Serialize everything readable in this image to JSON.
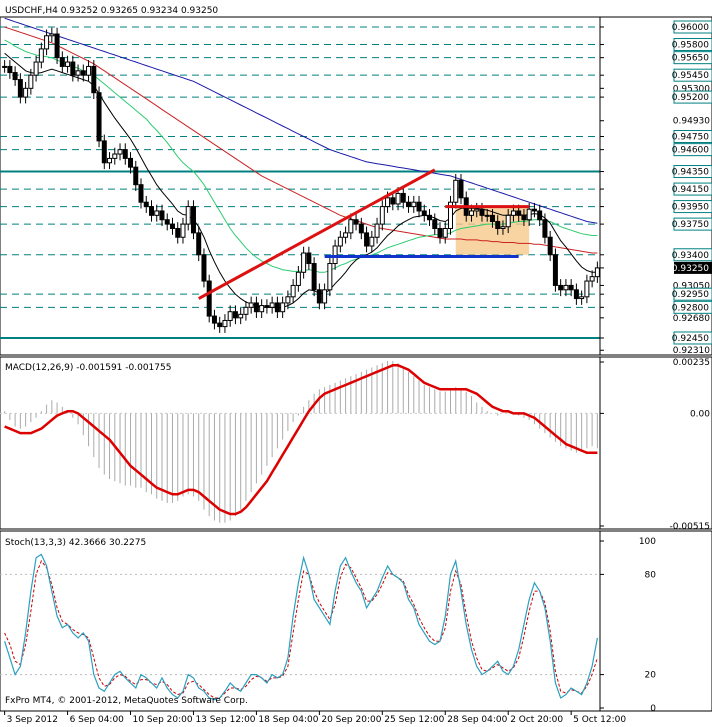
{
  "header": {
    "symbol": "USDCHF,H4",
    "ohlc": "0.93252 0.93265 0.93234 0.93250",
    "macd_label": "MACD(12,26,9) -0.001591 -0.001755",
    "stoch_label": "Stoch(13,3,3) 42.3666 30.2275",
    "copyright": "FxPro MT4, © 2001-2012, MetaQuotes Software Corp."
  },
  "colors": {
    "grid": "#008080",
    "candle": "#000000",
    "ma_fast": "#000000",
    "ma_green": "#2ecc71",
    "ma_red": "#cc2222",
    "ma_blue": "#1a1aaa",
    "trend": "#dd1111",
    "support": "#1133cc",
    "box_fill": "#f5c98a",
    "macd_hist": "#aaaaaa",
    "macd_signal": "#dd0000",
    "stoch_k": "#2aa0c0",
    "stoch_d": "#cc0000",
    "price_tag_bg": "#000000"
  },
  "chart_data": [
    {
      "type": "candlestick",
      "title": "USDCHF,H4",
      "ylim": [
        0.9229,
        0.9608
      ],
      "y_ticks": [
        "0.96000",
        "0.95800",
        "0.95650",
        "0.95450",
        "0.95300",
        "0.95200",
        "0.94930",
        "0.94750",
        "0.94600",
        "0.94350",
        "0.94150",
        "0.93950",
        "0.93750",
        "0.93400",
        "0.93250",
        "0.93050",
        "0.92950",
        "0.92800",
        "0.92680",
        "0.92450",
        "0.92310"
      ],
      "horizontal_levels": [
        0.96,
        0.958,
        0.9565,
        0.9545,
        0.952,
        0.9475,
        0.946,
        0.9435,
        0.9415,
        0.9395,
        0.9375,
        0.934,
        0.9295,
        0.928,
        0.9245
      ],
      "current_price": "0.93250",
      "x_ticks": [
        "3 Sep 2012",
        "6 Sep 04:00",
        "10 Sep 20:00",
        "13 Sep 12:00",
        "18 Sep 04:00",
        "20 Sep 20:00",
        "25 Sep 12:00",
        "28 Sep 04:00",
        "2 Oct 20:00",
        "5 Oct 12:00"
      ],
      "close": [
        0.9555,
        0.9548,
        0.954,
        0.952,
        0.953,
        0.9545,
        0.956,
        0.9575,
        0.959,
        0.9592,
        0.9565,
        0.9555,
        0.956,
        0.9545,
        0.955,
        0.9545,
        0.9555,
        0.9525,
        0.947,
        0.9445,
        0.945,
        0.9455,
        0.946,
        0.945,
        0.944,
        0.942,
        0.94,
        0.9395,
        0.9385,
        0.939,
        0.938,
        0.9375,
        0.937,
        0.936,
        0.9375,
        0.9395,
        0.9365,
        0.934,
        0.931,
        0.927,
        0.9262,
        0.9258,
        0.9265,
        0.9275,
        0.9268,
        0.9272,
        0.928,
        0.9285,
        0.9275,
        0.9282,
        0.928,
        0.9285,
        0.9275,
        0.9285,
        0.9292,
        0.9305,
        0.932,
        0.9342,
        0.933,
        0.93,
        0.9285,
        0.93,
        0.933,
        0.935,
        0.936,
        0.9365,
        0.938,
        0.9375,
        0.9365,
        0.935,
        0.936,
        0.9375,
        0.9395,
        0.9405,
        0.9398,
        0.941,
        0.94,
        0.9395,
        0.94,
        0.939,
        0.9385,
        0.938,
        0.937,
        0.936,
        0.937,
        0.94,
        0.9425,
        0.9405,
        0.9385,
        0.939,
        0.9392,
        0.9385,
        0.9385,
        0.9378,
        0.937,
        0.9372,
        0.9385,
        0.939,
        0.9385,
        0.938,
        0.9392,
        0.939,
        0.938,
        0.936,
        0.934,
        0.9305,
        0.93,
        0.9305,
        0.93,
        0.929,
        0.9292,
        0.931,
        0.9315,
        0.9325
      ],
      "stats": {
        "wick": 0.0012
      },
      "ma_green": [
        0.9585,
        0.9582,
        0.9578,
        0.9575,
        0.9572,
        0.957,
        0.9568,
        0.9567,
        0.9566,
        0.9565,
        0.9562,
        0.956,
        0.9558,
        0.9555,
        0.9553,
        0.955,
        0.9548,
        0.9545,
        0.954,
        0.9535,
        0.953,
        0.9525,
        0.952,
        0.9515,
        0.951,
        0.9505,
        0.95,
        0.9495,
        0.9488,
        0.9482,
        0.9475,
        0.9468,
        0.946,
        0.9452,
        0.9445,
        0.944,
        0.9435,
        0.9428,
        0.942,
        0.941,
        0.94,
        0.939,
        0.938,
        0.937,
        0.9362,
        0.9355,
        0.9348,
        0.9342,
        0.9337,
        0.9333,
        0.933,
        0.9327,
        0.9325,
        0.9323,
        0.9322,
        0.9321,
        0.9321,
        0.9322,
        0.9323,
        0.9322,
        0.932,
        0.932,
        0.9322,
        0.9325,
        0.9328,
        0.933,
        0.9333,
        0.9335,
        0.9337,
        0.9338,
        0.934,
        0.9342,
        0.9345,
        0.9348,
        0.935,
        0.9352,
        0.9354,
        0.9356,
        0.9358,
        0.936,
        0.9361,
        0.9362,
        0.9363,
        0.9363,
        0.9363,
        0.9365,
        0.9368,
        0.937,
        0.9371,
        0.9372,
        0.9373,
        0.9374,
        0.9375,
        0.9375,
        0.9375,
        0.9375,
        0.9376,
        0.9377,
        0.9378,
        0.9378,
        0.9379,
        0.938,
        0.938,
        0.9379,
        0.9378,
        0.9375,
        0.9372,
        0.937,
        0.9368,
        0.9366,
        0.9364,
        0.9363,
        0.9362,
        0.9362
      ],
      "ma_red": [
        0.96,
        0.9598,
        0.9596,
        0.9594,
        0.9592,
        0.959,
        0.9588,
        0.9586,
        0.9584,
        0.9582,
        0.9579,
        0.9576,
        0.9573,
        0.957,
        0.9567,
        0.9564,
        0.9561,
        0.9558,
        0.9554,
        0.955,
        0.9546,
        0.9542,
        0.9538,
        0.9534,
        0.953,
        0.9526,
        0.9522,
        0.9518,
        0.9514,
        0.951,
        0.9506,
        0.9502,
        0.9498,
        0.9494,
        0.949,
        0.9486,
        0.9482,
        0.9478,
        0.9474,
        0.947,
        0.9466,
        0.9462,
        0.9458,
        0.9454,
        0.945,
        0.9446,
        0.9442,
        0.9438,
        0.9434,
        0.943,
        0.9427,
        0.9424,
        0.9421,
        0.9418,
        0.9415,
        0.9412,
        0.9409,
        0.9406,
        0.9403,
        0.94,
        0.9397,
        0.9394,
        0.9391,
        0.9388,
        0.9385,
        0.9383,
        0.9381,
        0.9379,
        0.9377,
        0.9375,
        0.9373,
        0.9371,
        0.937,
        0.9369,
        0.9368,
        0.9367,
        0.9366,
        0.9365,
        0.9364,
        0.9363,
        0.9362,
        0.9361,
        0.936,
        0.9359,
        0.9358,
        0.9358,
        0.9358,
        0.9358,
        0.9357,
        0.9357,
        0.9357,
        0.9356,
        0.9356,
        0.9355,
        0.9355,
        0.9354,
        0.9354,
        0.9354,
        0.9353,
        0.9353,
        0.9353,
        0.9352,
        0.9352,
        0.9351,
        0.935,
        0.9349,
        0.9348,
        0.9347,
        0.9346,
        0.9345,
        0.9344,
        0.9343,
        0.9342,
        0.9342
      ],
      "ma_blue": [
        0.961,
        0.9608,
        0.9606,
        0.9604,
        0.9602,
        0.96,
        0.9598,
        0.9596,
        0.9594,
        0.9592,
        0.959,
        0.9588,
        0.9586,
        0.9584,
        0.9582,
        0.958,
        0.9578,
        0.9576,
        0.9574,
        0.9572,
        0.957,
        0.9568,
        0.9566,
        0.9564,
        0.9562,
        0.956,
        0.9558,
        0.9556,
        0.9554,
        0.9552,
        0.955,
        0.9548,
        0.9546,
        0.9544,
        0.9542,
        0.954,
        0.9538,
        0.9535,
        0.9532,
        0.9529,
        0.9526,
        0.9523,
        0.952,
        0.9517,
        0.9514,
        0.9511,
        0.9508,
        0.9505,
        0.9502,
        0.9499,
        0.9496,
        0.9493,
        0.949,
        0.9487,
        0.9484,
        0.9481,
        0.9478,
        0.9475,
        0.9472,
        0.9469,
        0.9466,
        0.9463,
        0.946,
        0.9458,
        0.9456,
        0.9454,
        0.9452,
        0.945,
        0.9448,
        0.9446,
        0.9445,
        0.9444,
        0.9443,
        0.9442,
        0.9441,
        0.944,
        0.9439,
        0.9438,
        0.9437,
        0.9436,
        0.9435,
        0.9434,
        0.9433,
        0.9432,
        0.9431,
        0.943,
        0.9428,
        0.9426,
        0.9424,
        0.9422,
        0.942,
        0.9418,
        0.9416,
        0.9414,
        0.9412,
        0.941,
        0.9408,
        0.9406,
        0.9404,
        0.9402,
        0.94,
        0.9398,
        0.9396,
        0.9394,
        0.9392,
        0.939,
        0.9388,
        0.9386,
        0.9384,
        0.9382,
        0.938,
        0.9378,
        0.9377,
        0.9376
      ],
      "ma_black": [
        0.957,
        0.9565,
        0.956,
        0.9555,
        0.955,
        0.9548,
        0.9547,
        0.9548,
        0.955,
        0.9552,
        0.955,
        0.9548,
        0.9546,
        0.9544,
        0.9542,
        0.954,
        0.9538,
        0.9533,
        0.9524,
        0.9514,
        0.9505,
        0.9496,
        0.9488,
        0.948,
        0.9472,
        0.9462,
        0.9451,
        0.944,
        0.943,
        0.942,
        0.9412,
        0.9405,
        0.9398,
        0.939,
        0.9386,
        0.9385,
        0.938,
        0.9372,
        0.936,
        0.9345,
        0.9332,
        0.932,
        0.931,
        0.9302,
        0.9295,
        0.929,
        0.9286,
        0.9284,
        0.9282,
        0.928,
        0.928,
        0.928,
        0.9279,
        0.928,
        0.9282,
        0.9285,
        0.929,
        0.9296,
        0.93,
        0.9299,
        0.9296,
        0.9296,
        0.93,
        0.9307,
        0.9313,
        0.932,
        0.9328,
        0.9334,
        0.9338,
        0.934,
        0.9343,
        0.9348,
        0.9355,
        0.9362,
        0.9367,
        0.9373,
        0.9377,
        0.938,
        0.9383,
        0.9384,
        0.9385,
        0.9384,
        0.9382,
        0.9379,
        0.9378,
        0.9382,
        0.939,
        0.9393,
        0.9393,
        0.9393,
        0.9393,
        0.9392,
        0.9391,
        0.9389,
        0.9387,
        0.9385,
        0.9385,
        0.9386,
        0.9386,
        0.9385,
        0.9386,
        0.9387,
        0.9386,
        0.9382,
        0.9376,
        0.9366,
        0.9356,
        0.9349,
        0.9341,
        0.9333,
        0.9326,
        0.9322,
        0.932,
        0.932
      ]
    },
    {
      "type": "histogram-line",
      "title": "MACD(12,26,9)",
      "ylim": [
        -0.00515,
        0.00235
      ],
      "y_ticks": [
        "0.00235",
        "0.00",
        "-0.00515"
      ],
      "histogram": [
        0.0001,
        -0.0003,
        -0.0006,
        -0.0007,
        -0.0006,
        -0.0004,
        -0.0002,
        0.0001,
        0.0004,
        0.0006,
        0.0005,
        0.0003,
        0.0001,
        -0.0002,
        -0.0005,
        -0.001,
        -0.0015,
        -0.002,
        -0.0025,
        -0.0028,
        -0.003,
        -0.0031,
        -0.0032,
        -0.0033,
        -0.0033,
        -0.0034,
        -0.0034,
        -0.0036,
        -0.0037,
        -0.0039,
        -0.004,
        -0.0041,
        -0.0041,
        -0.004,
        -0.0038,
        -0.0037,
        -0.0038,
        -0.004,
        -0.0044,
        -0.0047,
        -0.0049,
        -0.005,
        -0.005,
        -0.0049,
        -0.0047,
        -0.0044,
        -0.004,
        -0.0036,
        -0.0032,
        -0.0028,
        -0.0024,
        -0.002,
        -0.0016,
        -0.0012,
        -0.0008,
        -0.0004,
        -0.0001,
        0.0003,
        0.0006,
        0.0009,
        0.0011,
        0.0012,
        0.0013,
        0.0014,
        0.0015,
        0.0016,
        0.0017,
        0.0018,
        0.0019,
        0.002,
        0.0021,
        0.0022,
        0.0023,
        0.0024,
        0.0024,
        0.0023,
        0.0021,
        0.0019,
        0.0017,
        0.0015,
        0.0013,
        0.0012,
        0.0011,
        0.001,
        0.001,
        0.0011,
        0.0012,
        0.0011,
        0.001,
        0.0008,
        0.0005,
        0.0003,
        0.0001,
        0.0,
        -0.0001,
        0.0,
        0.0001,
        0.0,
        -0.0001,
        -0.0002,
        -0.0003,
        -0.0005,
        -0.0007,
        -0.0009,
        -0.0011,
        -0.0013,
        -0.0015,
        -0.0016,
        -0.0017,
        -0.0018,
        -0.0017,
        -0.0016,
        -0.0015,
        -0.0016
      ],
      "signal": [
        -0.0006,
        -0.0007,
        -0.0008,
        -0.0009,
        -0.0009,
        -0.0009,
        -0.0008,
        -0.0007,
        -0.0005,
        -0.0003,
        -0.0001,
        0.0,
        0.0001,
        0.0001,
        0.0,
        -0.0002,
        -0.0004,
        -0.0006,
        -0.0008,
        -0.001,
        -0.0012,
        -0.0015,
        -0.0018,
        -0.0021,
        -0.0024,
        -0.0026,
        -0.0028,
        -0.003,
        -0.0032,
        -0.0034,
        -0.0035,
        -0.0036,
        -0.0037,
        -0.0037,
        -0.0036,
        -0.0035,
        -0.0035,
        -0.0036,
        -0.0038,
        -0.004,
        -0.0042,
        -0.0044,
        -0.0045,
        -0.0046,
        -0.0046,
        -0.0045,
        -0.0043,
        -0.004,
        -0.0037,
        -0.0034,
        -0.0031,
        -0.0027,
        -0.0023,
        -0.0019,
        -0.0015,
        -0.0011,
        -0.0007,
        -0.0003,
        0.0001,
        0.0004,
        0.0007,
        0.0009,
        0.001,
        0.0011,
        0.0012,
        0.0013,
        0.0014,
        0.0015,
        0.0016,
        0.0017,
        0.0018,
        0.0019,
        0.002,
        0.0021,
        0.0022,
        0.0022,
        0.0021,
        0.002,
        0.0018,
        0.0016,
        0.0014,
        0.0013,
        0.0012,
        0.0011,
        0.0011,
        0.0011,
        0.0011,
        0.0011,
        0.0011,
        0.001,
        0.0009,
        0.0007,
        0.0005,
        0.0003,
        0.0002,
        0.0001,
        0.0001,
        0.0,
        0.0,
        0.0,
        -0.0001,
        -0.0002,
        -0.0004,
        -0.0006,
        -0.0008,
        -0.001,
        -0.0012,
        -0.0014,
        -0.0015,
        -0.0016,
        -0.0017,
        -0.0018,
        -0.0018,
        -0.0018
      ]
    },
    {
      "type": "line",
      "title": "Stoch(13,3,3)",
      "ylim": [
        0,
        100
      ],
      "y_ticks": [
        "100",
        "80",
        "20",
        "0"
      ],
      "k": [
        40,
        30,
        20,
        25,
        45,
        70,
        90,
        92,
        85,
        70,
        55,
        48,
        50,
        45,
        42,
        45,
        40,
        20,
        12,
        10,
        15,
        20,
        22,
        18,
        15,
        12,
        20,
        18,
        15,
        12,
        18,
        12,
        8,
        6,
        10,
        20,
        18,
        12,
        10,
        6,
        5,
        6,
        10,
        15,
        12,
        10,
        15,
        20,
        20,
        18,
        15,
        20,
        18,
        20,
        30,
        55,
        75,
        90,
        80,
        65,
        60,
        55,
        50,
        70,
        85,
        90,
        82,
        75,
        70,
        60,
        65,
        70,
        78,
        85,
        80,
        78,
        75,
        65,
        60,
        50,
        45,
        40,
        38,
        40,
        55,
        80,
        88,
        70,
        50,
        35,
        25,
        20,
        22,
        25,
        28,
        22,
        20,
        25,
        35,
        50,
        65,
        75,
        70,
        60,
        40,
        15,
        6,
        8,
        12,
        10,
        8,
        15,
        25,
        42
      ],
      "d": [
        45,
        38,
        28,
        26,
        38,
        58,
        80,
        88,
        84,
        74,
        60,
        52,
        50,
        47,
        45,
        44,
        42,
        30,
        18,
        13,
        14,
        18,
        20,
        19,
        16,
        14,
        17,
        17,
        15,
        14,
        16,
        14,
        10,
        8,
        9,
        15,
        16,
        14,
        11,
        8,
        6,
        6,
        9,
        12,
        12,
        11,
        13,
        17,
        19,
        18,
        16,
        18,
        18,
        19,
        25,
        45,
        65,
        82,
        80,
        70,
        63,
        58,
        53,
        62,
        78,
        86,
        84,
        78,
        72,
        64,
        64,
        68,
        74,
        81,
        80,
        78,
        76,
        68,
        62,
        54,
        48,
        43,
        40,
        40,
        48,
        70,
        82,
        74,
        56,
        40,
        30,
        23,
        22,
        24,
        26,
        24,
        22,
        24,
        30,
        43,
        58,
        70,
        70,
        63,
        46,
        22,
        10,
        9,
        11,
        10,
        9,
        13,
        20,
        30
      ]
    }
  ]
}
